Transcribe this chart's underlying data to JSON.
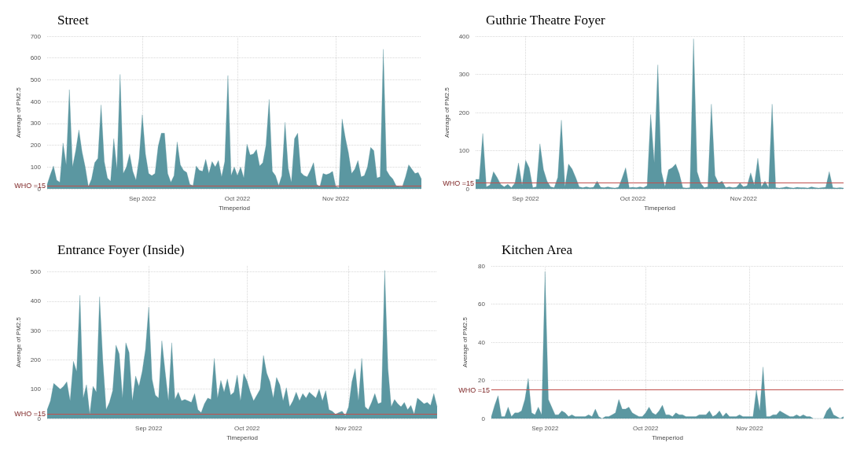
{
  "chart_data": [
    {
      "type": "area",
      "title": "Street",
      "xlabel": "Timeperiod",
      "ylabel": "Average of PM2.5",
      "grid": true,
      "xlim": [
        "2022-08-02",
        "2022-11-28"
      ],
      "xticks": [
        {
          "value": "2022-09-01",
          "label": "Sep 2022"
        },
        {
          "value": "2022-10-01",
          "label": "Oct 2022"
        },
        {
          "value": "2022-11-01",
          "label": "Nov 2022"
        }
      ],
      "ylim": [
        0,
        700
      ],
      "yticks": [
        0,
        100,
        200,
        300,
        400,
        500,
        600,
        700
      ],
      "ref_lines": [
        {
          "axis": "y",
          "value": 15,
          "label": "WHO =15",
          "color": "#c0504d"
        }
      ],
      "x": [
        "2022-08-02",
        "2022-08-03",
        "2022-08-04",
        "2022-08-05",
        "2022-08-06",
        "2022-08-07",
        "2022-08-08",
        "2022-08-09",
        "2022-08-10",
        "2022-08-11",
        "2022-08-12",
        "2022-08-13",
        "2022-08-14",
        "2022-08-15",
        "2022-08-16",
        "2022-08-17",
        "2022-08-18",
        "2022-08-19",
        "2022-08-20",
        "2022-08-21",
        "2022-08-22",
        "2022-08-23",
        "2022-08-24",
        "2022-08-25",
        "2022-08-26",
        "2022-08-27",
        "2022-08-28",
        "2022-08-29",
        "2022-08-30",
        "2022-08-31",
        "2022-09-01",
        "2022-09-02",
        "2022-09-03",
        "2022-09-04",
        "2022-09-05",
        "2022-09-06",
        "2022-09-07",
        "2022-09-08",
        "2022-09-09",
        "2022-09-10",
        "2022-09-11",
        "2022-09-12",
        "2022-09-13",
        "2022-09-14",
        "2022-09-15",
        "2022-09-16",
        "2022-09-17",
        "2022-09-18",
        "2022-09-19",
        "2022-09-20",
        "2022-09-21",
        "2022-09-22",
        "2022-09-23",
        "2022-09-24",
        "2022-09-25",
        "2022-09-26",
        "2022-09-27",
        "2022-09-28",
        "2022-09-29",
        "2022-09-30",
        "2022-10-01",
        "2022-10-02",
        "2022-10-03",
        "2022-10-04",
        "2022-10-05",
        "2022-10-06",
        "2022-10-07",
        "2022-10-08",
        "2022-10-09",
        "2022-10-10",
        "2022-10-11",
        "2022-10-12",
        "2022-10-13",
        "2022-10-14",
        "2022-10-15",
        "2022-10-16",
        "2022-10-17",
        "2022-10-18",
        "2022-10-19",
        "2022-10-20",
        "2022-10-21",
        "2022-10-22",
        "2022-10-23",
        "2022-10-24",
        "2022-10-25",
        "2022-10-26",
        "2022-10-27",
        "2022-10-28",
        "2022-10-29",
        "2022-10-30",
        "2022-10-31",
        "2022-11-01",
        "2022-11-02",
        "2022-11-03",
        "2022-11-04",
        "2022-11-05",
        "2022-11-06",
        "2022-11-07",
        "2022-11-08",
        "2022-11-09",
        "2022-11-10",
        "2022-11-11",
        "2022-11-12",
        "2022-11-13",
        "2022-11-14",
        "2022-11-15",
        "2022-11-16",
        "2022-11-17",
        "2022-11-18",
        "2022-11-19",
        "2022-11-20",
        "2022-11-21",
        "2022-11-22",
        "2022-11-23",
        "2022-11-24",
        "2022-11-25",
        "2022-11-26",
        "2022-11-27",
        "2022-11-28"
      ],
      "series": [
        {
          "color": "#5b97a1",
          "values": [
            20,
            65,
            105,
            40,
            30,
            210,
            110,
            455,
            100,
            175,
            270,
            170,
            100,
            10,
            45,
            120,
            140,
            385,
            125,
            50,
            35,
            230,
            90,
            525,
            70,
            100,
            160,
            80,
            40,
            140,
            340,
            160,
            70,
            60,
            70,
            195,
            255,
            255,
            70,
            30,
            60,
            215,
            110,
            85,
            75,
            20,
            15,
            105,
            85,
            80,
            135,
            70,
            125,
            100,
            130,
            55,
            125,
            520,
            60,
            100,
            60,
            100,
            50,
            205,
            155,
            160,
            180,
            105,
            120,
            200,
            410,
            80,
            60,
            15,
            60,
            305,
            95,
            30,
            230,
            255,
            75,
            60,
            55,
            85,
            120,
            20,
            10,
            70,
            65,
            70,
            80,
            10,
            5,
            320,
            235,
            165,
            70,
            90,
            130,
            55,
            60,
            100,
            190,
            175,
            50,
            55,
            640,
            85,
            60,
            45,
            15,
            10,
            10,
            55,
            110,
            90,
            70,
            75,
            45
          ]
        }
      ]
    },
    {
      "type": "area",
      "title": "Guthrie Theatre Foyer",
      "xlabel": "Timeperiod",
      "ylabel": "Average of PM2.5",
      "grid": true,
      "xlim": [
        "2022-08-18",
        "2022-11-29"
      ],
      "xticks": [
        {
          "value": "2022-09-01",
          "label": "Sep 2022"
        },
        {
          "value": "2022-10-01",
          "label": "Oct 2022"
        },
        {
          "value": "2022-11-01",
          "label": "Nov 2022"
        }
      ],
      "ylim": [
        0,
        400
      ],
      "yticks": [
        0,
        100,
        200,
        300,
        400
      ],
      "ref_lines": [
        {
          "axis": "y",
          "value": 15,
          "label": "WHO =15",
          "color": "#c0504d"
        }
      ],
      "x": [
        "2022-08-18",
        "2022-08-19",
        "2022-08-20",
        "2022-08-21",
        "2022-08-22",
        "2022-08-23",
        "2022-08-24",
        "2022-08-25",
        "2022-08-26",
        "2022-08-27",
        "2022-08-28",
        "2022-08-29",
        "2022-08-30",
        "2022-08-31",
        "2022-09-01",
        "2022-09-02",
        "2022-09-03",
        "2022-09-04",
        "2022-09-05",
        "2022-09-06",
        "2022-09-07",
        "2022-09-08",
        "2022-09-09",
        "2022-09-10",
        "2022-09-11",
        "2022-09-12",
        "2022-09-13",
        "2022-09-14",
        "2022-09-15",
        "2022-09-16",
        "2022-09-17",
        "2022-09-18",
        "2022-09-19",
        "2022-09-20",
        "2022-09-21",
        "2022-09-22",
        "2022-09-23",
        "2022-09-24",
        "2022-09-25",
        "2022-09-26",
        "2022-09-27",
        "2022-09-28",
        "2022-09-29",
        "2022-09-30",
        "2022-10-01",
        "2022-10-02",
        "2022-10-03",
        "2022-10-04",
        "2022-10-05",
        "2022-10-06",
        "2022-10-07",
        "2022-10-08",
        "2022-10-09",
        "2022-10-10",
        "2022-10-11",
        "2022-10-12",
        "2022-10-13",
        "2022-10-14",
        "2022-10-15",
        "2022-10-16",
        "2022-10-17",
        "2022-10-18",
        "2022-10-19",
        "2022-10-20",
        "2022-10-21",
        "2022-10-22",
        "2022-10-23",
        "2022-10-24",
        "2022-10-25",
        "2022-10-26",
        "2022-10-27",
        "2022-10-28",
        "2022-10-29",
        "2022-10-30",
        "2022-10-31",
        "2022-11-01",
        "2022-11-02",
        "2022-11-03",
        "2022-11-04",
        "2022-11-05",
        "2022-11-06",
        "2022-11-07",
        "2022-11-08",
        "2022-11-09",
        "2022-11-10",
        "2022-11-11",
        "2022-11-12",
        "2022-11-13",
        "2022-11-14",
        "2022-11-15",
        "2022-11-16",
        "2022-11-17",
        "2022-11-18",
        "2022-11-19",
        "2022-11-20",
        "2022-11-21",
        "2022-11-22",
        "2022-11-23",
        "2022-11-24",
        "2022-11-25",
        "2022-11-26",
        "2022-11-27",
        "2022-11-28",
        "2022-11-29"
      ],
      "series": [
        {
          "color": "#5b97a1",
          "values": [
            25,
            25,
            145,
            5,
            10,
            45,
            30,
            12,
            5,
            12,
            3,
            15,
            68,
            10,
            75,
            55,
            3,
            5,
            118,
            50,
            20,
            5,
            3,
            30,
            180,
            5,
            65,
            52,
            30,
            5,
            3,
            5,
            3,
            4,
            20,
            4,
            3,
            5,
            3,
            2,
            4,
            28,
            55,
            3,
            4,
            3,
            5,
            3,
            8,
            195,
            68,
            325,
            45,
            5,
            50,
            55,
            65,
            40,
            3,
            2,
            3,
            393,
            45,
            15,
            3,
            5,
            222,
            35,
            15,
            20,
            3,
            5,
            3,
            4,
            15,
            5,
            8,
            42,
            10,
            80,
            5,
            20,
            3,
            222,
            3,
            2,
            3,
            5,
            3,
            2,
            4,
            3,
            3,
            2,
            5,
            3,
            2,
            3,
            4,
            45,
            3,
            2,
            3,
            2
          ]
        }
      ]
    },
    {
      "type": "area",
      "title": "Entrance Foyer (Inside)",
      "xlabel": "Timeperiod",
      "ylabel": "Average of PM2.5",
      "grid": true,
      "xlim": [
        "2022-08-01",
        "2022-11-28"
      ],
      "xticks": [
        {
          "value": "2022-09-01",
          "label": "Sep 2022"
        },
        {
          "value": "2022-10-01",
          "label": "Oct 2022"
        },
        {
          "value": "2022-11-01",
          "label": "Nov 2022"
        }
      ],
      "ylim": [
        0,
        520
      ],
      "yticks": [
        0,
        100,
        200,
        300,
        400,
        500
      ],
      "ref_lines": [
        {
          "axis": "y",
          "value": 15,
          "label": "WHO =15",
          "color": "#c0504d"
        }
      ],
      "x": [
        "2022-08-01",
        "2022-08-02",
        "2022-08-03",
        "2022-08-04",
        "2022-08-05",
        "2022-08-06",
        "2022-08-07",
        "2022-08-08",
        "2022-08-09",
        "2022-08-10",
        "2022-08-11",
        "2022-08-12",
        "2022-08-13",
        "2022-08-14",
        "2022-08-15",
        "2022-08-16",
        "2022-08-17",
        "2022-08-18",
        "2022-08-19",
        "2022-08-20",
        "2022-08-21",
        "2022-08-22",
        "2022-08-23",
        "2022-08-24",
        "2022-08-25",
        "2022-08-26",
        "2022-08-27",
        "2022-08-28",
        "2022-08-29",
        "2022-08-30",
        "2022-08-31",
        "2022-09-01",
        "2022-09-02",
        "2022-09-03",
        "2022-09-04",
        "2022-09-05",
        "2022-09-06",
        "2022-09-07",
        "2022-09-08",
        "2022-09-09",
        "2022-09-10",
        "2022-09-11",
        "2022-09-12",
        "2022-09-13",
        "2022-09-14",
        "2022-09-15",
        "2022-09-16",
        "2022-09-17",
        "2022-09-18",
        "2022-09-19",
        "2022-09-20",
        "2022-09-21",
        "2022-09-22",
        "2022-09-23",
        "2022-09-24",
        "2022-09-25",
        "2022-09-26",
        "2022-09-27",
        "2022-09-28",
        "2022-09-29",
        "2022-09-30",
        "2022-10-01",
        "2022-10-02",
        "2022-10-03",
        "2022-10-04",
        "2022-10-05",
        "2022-10-06",
        "2022-10-07",
        "2022-10-08",
        "2022-10-09",
        "2022-10-10",
        "2022-10-11",
        "2022-10-12",
        "2022-10-13",
        "2022-10-14",
        "2022-10-15",
        "2022-10-16",
        "2022-10-17",
        "2022-10-18",
        "2022-10-19",
        "2022-10-20",
        "2022-10-21",
        "2022-10-22",
        "2022-10-23",
        "2022-10-24",
        "2022-10-25",
        "2022-10-26",
        "2022-10-27",
        "2022-10-28",
        "2022-10-29",
        "2022-10-30",
        "2022-10-31",
        "2022-11-01",
        "2022-11-02",
        "2022-11-03",
        "2022-11-04",
        "2022-11-05",
        "2022-11-06",
        "2022-11-07",
        "2022-11-08",
        "2022-11-09",
        "2022-11-10",
        "2022-11-11",
        "2022-11-12",
        "2022-11-13",
        "2022-11-14",
        "2022-11-15",
        "2022-11-16",
        "2022-11-17",
        "2022-11-18",
        "2022-11-19",
        "2022-11-20",
        "2022-11-21",
        "2022-11-22",
        "2022-11-23",
        "2022-11-24",
        "2022-11-25",
        "2022-11-26",
        "2022-11-27",
        "2022-11-28"
      ],
      "series": [
        {
          "color": "#5b97a1",
          "values": [
            30,
            60,
            120,
            110,
            100,
            110,
            125,
            60,
            195,
            160,
            420,
            70,
            115,
            15,
            110,
            90,
            415,
            195,
            30,
            55,
            95,
            250,
            220,
            70,
            258,
            225,
            60,
            145,
            110,
            160,
            235,
            380,
            135,
            80,
            70,
            265,
            160,
            60,
            258,
            65,
            90,
            60,
            65,
            60,
            55,
            85,
            30,
            20,
            50,
            70,
            65,
            205,
            70,
            130,
            90,
            135,
            80,
            90,
            148,
            60,
            153,
            128,
            90,
            60,
            80,
            100,
            215,
            155,
            125,
            70,
            140,
            115,
            60,
            105,
            40,
            60,
            90,
            60,
            85,
            70,
            90,
            80,
            70,
            100,
            60,
            95,
            30,
            25,
            15,
            20,
            25,
            10,
            40,
            125,
            170,
            60,
            205,
            40,
            30,
            55,
            85,
            50,
            55,
            505,
            170,
            40,
            65,
            50,
            40,
            55,
            30,
            45,
            15,
            70,
            60,
            50,
            55,
            45,
            85,
            40
          ]
        }
      ]
    },
    {
      "type": "area",
      "title": "Kitchen Area",
      "xlabel": "Timeperiod",
      "ylabel": "Average of PM2.5",
      "grid": true,
      "xlim": [
        "2022-08-16",
        "2022-11-29"
      ],
      "xticks": [
        {
          "value": "2022-09-01",
          "label": "Sep 2022"
        },
        {
          "value": "2022-10-01",
          "label": "Oct 2022"
        },
        {
          "value": "2022-11-01",
          "label": "Nov 2022"
        }
      ],
      "ylim": [
        0,
        80
      ],
      "yticks": [
        0,
        20,
        40,
        60,
        80
      ],
      "ref_lines": [
        {
          "axis": "y",
          "value": 15,
          "label": "WHO =15",
          "color": "#c0504d"
        }
      ],
      "x": [
        "2022-08-16",
        "2022-08-17",
        "2022-08-18",
        "2022-08-19",
        "2022-08-20",
        "2022-08-21",
        "2022-08-22",
        "2022-08-23",
        "2022-08-24",
        "2022-08-25",
        "2022-08-26",
        "2022-08-27",
        "2022-08-28",
        "2022-08-29",
        "2022-08-30",
        "2022-08-31",
        "2022-09-01",
        "2022-09-02",
        "2022-09-03",
        "2022-09-04",
        "2022-09-05",
        "2022-09-06",
        "2022-09-07",
        "2022-09-08",
        "2022-09-09",
        "2022-09-10",
        "2022-09-11",
        "2022-09-12",
        "2022-09-13",
        "2022-09-14",
        "2022-09-15",
        "2022-09-16",
        "2022-09-17",
        "2022-09-18",
        "2022-09-19",
        "2022-09-20",
        "2022-09-21",
        "2022-09-22",
        "2022-09-23",
        "2022-09-24",
        "2022-09-25",
        "2022-09-26",
        "2022-09-27",
        "2022-09-28",
        "2022-09-29",
        "2022-09-30",
        "2022-10-01",
        "2022-10-02",
        "2022-10-03",
        "2022-10-04",
        "2022-10-05",
        "2022-10-06",
        "2022-10-07",
        "2022-10-08",
        "2022-10-09",
        "2022-10-10",
        "2022-10-11",
        "2022-10-12",
        "2022-10-13",
        "2022-10-14",
        "2022-10-15",
        "2022-10-16",
        "2022-10-17",
        "2022-10-18",
        "2022-10-19",
        "2022-10-20",
        "2022-10-21",
        "2022-10-22",
        "2022-10-23",
        "2022-10-24",
        "2022-10-25",
        "2022-10-26",
        "2022-10-27",
        "2022-10-28",
        "2022-10-29",
        "2022-10-30",
        "2022-10-31",
        "2022-11-01",
        "2022-11-02",
        "2022-11-03",
        "2022-11-04",
        "2022-11-05",
        "2022-11-06",
        "2022-11-07",
        "2022-11-08",
        "2022-11-09",
        "2022-11-10",
        "2022-11-11",
        "2022-11-12",
        "2022-11-13",
        "2022-11-14",
        "2022-11-15",
        "2022-11-16",
        "2022-11-17",
        "2022-11-18",
        "2022-11-19",
        "2022-11-20",
        "2022-11-21",
        "2022-11-22",
        "2022-11-23",
        "2022-11-24",
        "2022-11-25",
        "2022-11-26",
        "2022-11-27",
        "2022-11-28",
        "2022-11-29"
      ],
      "series": [
        {
          "color": "#5b97a1",
          "values": [
            1,
            7,
            12,
            1,
            1,
            6,
            1,
            3,
            3,
            4,
            10,
            21,
            3,
            2,
            6,
            2,
            77,
            10,
            6,
            2,
            2,
            4,
            3,
            1,
            2,
            1,
            1,
            1,
            1,
            2,
            1,
            5,
            1,
            0,
            1,
            1,
            2,
            3,
            10,
            5,
            5,
            6,
            3,
            2,
            1,
            1,
            3,
            6,
            3,
            2,
            4,
            7,
            2,
            2,
            1,
            3,
            2,
            2,
            1,
            1,
            1,
            1,
            2,
            2,
            2,
            4,
            1,
            2,
            4,
            1,
            3,
            1,
            1,
            1,
            2,
            1,
            1,
            1,
            1,
            15,
            4,
            27,
            1,
            1,
            2,
            2,
            4,
            3,
            2,
            1,
            1,
            2,
            1,
            2,
            1,
            1,
            0,
            0,
            0,
            0,
            4,
            6,
            2,
            1,
            0,
            1
          ]
        }
      ]
    }
  ]
}
